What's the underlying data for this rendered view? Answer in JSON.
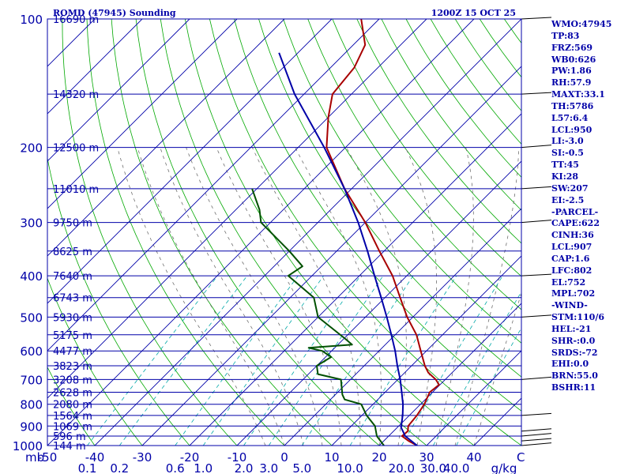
{
  "header": {
    "station": "ROMD (47945) Sounding",
    "time": "1200Z 15 OCT 25"
  },
  "chart_data": {
    "type": "line",
    "title": "ROMD (47945) Sounding 1200Z 15 OCT 25",
    "xlabel": "C",
    "ylabel": "mb",
    "x_unit_label": "C",
    "mixing_unit_label": "g/kg",
    "pressure_unit_label": "mb",
    "xlim": [
      -50,
      50
    ],
    "ylim_pressure": [
      1000,
      100
    ],
    "skew_deg": 45,
    "temperature_ticks": [
      "-50",
      "-40",
      "-30",
      "-20",
      "-10",
      "0",
      "10",
      "20",
      "30",
      "40"
    ],
    "temperature_tick_values": [
      -50,
      -40,
      -30,
      -20,
      -10,
      0,
      10,
      20,
      30,
      40
    ],
    "pressure_ticks": [
      "1000",
      "900",
      "800",
      "700",
      "600",
      "500",
      "400",
      "300",
      "200",
      "100"
    ],
    "pressure_tick_values": [
      1000,
      900,
      800,
      700,
      600,
      500,
      400,
      300,
      200,
      100
    ],
    "mixing_ratio_labels": [
      "0.1",
      "0.2",
      "0.6",
      "1.0",
      "2.0",
      "3.0",
      "5.0",
      "10.0",
      "20.0",
      "30.0",
      "40.0"
    ],
    "mixing_ratio_values": [
      0.1,
      0.2,
      0.6,
      1.0,
      2.0,
      3.0,
      5.0,
      10.0,
      20.0,
      30.0,
      40.0
    ],
    "height_levels": [
      {
        "p": 1000,
        "label": "144 m"
      },
      {
        "p": 950,
        "label": "596 m"
      },
      {
        "p": 900,
        "label": "1069 m"
      },
      {
        "p": 850,
        "label": "1564 m"
      },
      {
        "p": 800,
        "label": "2080 m"
      },
      {
        "p": 750,
        "label": "2628 m"
      },
      {
        "p": 700,
        "label": "3208 m"
      },
      {
        "p": 650,
        "label": "3823 m"
      },
      {
        "p": 600,
        "label": "4477 m"
      },
      {
        "p": 550,
        "label": "5175 m"
      },
      {
        "p": 500,
        "label": "5930 m"
      },
      {
        "p": 450,
        "label": "6743 m"
      },
      {
        "p": 400,
        "label": "7640 m"
      },
      {
        "p": 350,
        "label": "8625 m"
      },
      {
        "p": 300,
        "label": "9750 m"
      },
      {
        "p": 250,
        "label": "11010 m"
      },
      {
        "p": 200,
        "label": "12500 m"
      },
      {
        "p": 150,
        "label": "14320 m"
      },
      {
        "p": 100,
        "label": "16690 m"
      }
    ],
    "series": [
      {
        "name": "Temperature",
        "color": "#a80000",
        "points": [
          [
            1000,
            28.0
          ],
          [
            975,
            25.2
          ],
          [
            950,
            22.8
          ],
          [
            925,
            23.0
          ],
          [
            900,
            22.0
          ],
          [
            850,
            21.6
          ],
          [
            800,
            20.8
          ],
          [
            750,
            19.4
          ],
          [
            720,
            19.8
          ],
          [
            700,
            18.0
          ],
          [
            675,
            15.0
          ],
          [
            650,
            12.8
          ],
          [
            600,
            8.8
          ],
          [
            550,
            4.5
          ],
          [
            500,
            -1.2
          ],
          [
            450,
            -6.8
          ],
          [
            400,
            -13.0
          ],
          [
            350,
            -21.0
          ],
          [
            300,
            -30.0
          ],
          [
            250,
            -41.5
          ],
          [
            200,
            -54.0
          ],
          [
            170,
            -60.0
          ],
          [
            150,
            -64.0
          ],
          [
            130,
            -65.0
          ],
          [
            115,
            -67.5
          ],
          [
            100,
            -73.8
          ]
        ]
      },
      {
        "name": "Dewpoint",
        "color": "#005000",
        "points": [
          [
            1000,
            21.0
          ],
          [
            950,
            17.5
          ],
          [
            900,
            15.0
          ],
          [
            850,
            11.0
          ],
          [
            800,
            7.5
          ],
          [
            780,
            3.0
          ],
          [
            760,
            1.5
          ],
          [
            700,
            -2.0
          ],
          [
            680,
            -8.0
          ],
          [
            650,
            -10.0
          ],
          [
            620,
            -8.8
          ],
          [
            600,
            -12.0
          ],
          [
            590,
            -15.5
          ],
          [
            580,
            -7.0
          ],
          [
            560,
            -10.0
          ],
          [
            500,
            -20.0
          ],
          [
            450,
            -25.0
          ],
          [
            400,
            -35.0
          ],
          [
            380,
            -34.0
          ],
          [
            350,
            -40.0
          ],
          [
            300,
            -52.0
          ],
          [
            280,
            -55.0
          ],
          [
            250,
            -61.0
          ]
        ]
      },
      {
        "name": "Parcel",
        "color": "#0000a8",
        "points": [
          [
            1000,
            28.0
          ],
          [
            950,
            23.5
          ],
          [
            907,
            20.8
          ],
          [
            850,
            18.6
          ],
          [
            800,
            16.3
          ],
          [
            750,
            13.5
          ],
          [
            700,
            10.5
          ],
          [
            650,
            7.0
          ],
          [
            600,
            3.4
          ],
          [
            550,
            -0.8
          ],
          [
            500,
            -5.5
          ],
          [
            450,
            -10.8
          ],
          [
            400,
            -16.8
          ],
          [
            350,
            -23.5
          ],
          [
            300,
            -31.5
          ],
          [
            250,
            -41.5
          ],
          [
            200,
            -54.5
          ],
          [
            150,
            -72.0
          ],
          [
            120,
            -84.0
          ]
        ]
      }
    ]
  },
  "stats": [
    "WMO:47945",
    "TP:83",
    "FRZ:569",
    "WB0:626",
    "PW:1.86",
    "RH:57.9",
    "MAXT:33.1",
    "TH:5786",
    "L57:6.4",
    "LCL:950",
    "LI:-3.0",
    "SI:-0.5",
    "TT:45",
    "KI:28",
    "SW:207",
    "EI:-2.5",
    "-PARCEL-",
    "CAPE:622",
    "CINH:36",
    "LCL:907",
    "CAP:1.6",
    "LFC:802",
    "EL:752",
    "MPL:702",
    "-WIND-",
    "STM:110/6",
    "HEL:-21",
    "SHR-:0.0",
    "SRDS:-72",
    "EHI:0.0",
    "BRN:55.0",
    "BSHR:11"
  ],
  "colors": {
    "axis": "#0000a8",
    "isobar": "#0000a8",
    "isotherm": "#0000a8",
    "dry_adiabat": "#00a800",
    "moist_adiabat": "#707070",
    "mixing_ratio": "#00a8a8",
    "wind": "#000000"
  }
}
